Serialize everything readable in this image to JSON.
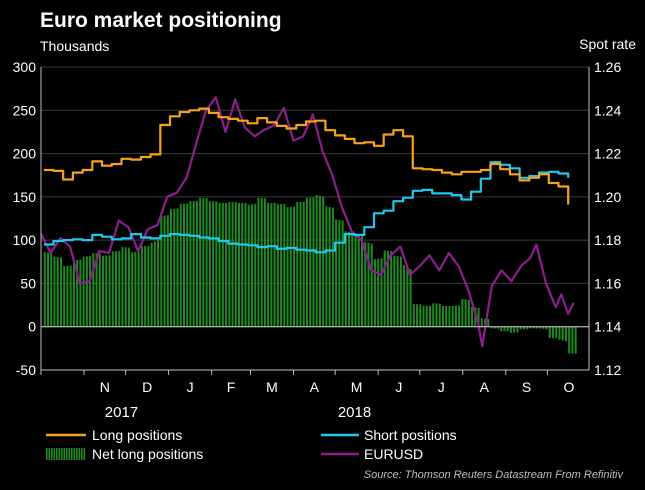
{
  "chart_data": {
    "type": "line",
    "title": "Euro market positioning",
    "left_axis_label": "Thousands",
    "right_axis_label": "Spot rate",
    "left_ylim": [
      -50,
      300
    ],
    "right_ylim": [
      1.12,
      1.26
    ],
    "left_ticks": [
      "300",
      "250",
      "200",
      "150",
      "100",
      "50",
      "0",
      "-50"
    ],
    "right_ticks": [
      "1.26",
      "1.24",
      "1.22",
      "1.20",
      "1.18",
      "1.16",
      "1.14",
      "1.12"
    ],
    "months": [
      "N",
      "D",
      "J",
      "F",
      "M",
      "A",
      "M",
      "J",
      "J",
      "A",
      "S",
      "O"
    ],
    "years": [
      "2017",
      "2018"
    ],
    "x_start": "2017-10-01",
    "x_end": "2018-10-31",
    "source": "Source: Thomson Reuters Datastream From Refinitiv",
    "series": [
      {
        "name": "Long positions",
        "axis": "left",
        "color": "#f7a21b",
        "kind": "line",
        "points": [
          [
            "2017-10-03",
            181
          ],
          [
            "2017-10-10",
            180
          ],
          [
            "2017-10-17",
            170
          ],
          [
            "2017-10-24",
            178
          ],
          [
            "2017-10-31",
            181
          ],
          [
            "2017-11-07",
            191
          ],
          [
            "2017-11-14",
            186
          ],
          [
            "2017-11-21",
            188
          ],
          [
            "2017-11-28",
            194
          ],
          [
            "2017-12-05",
            193
          ],
          [
            "2017-12-12",
            196
          ],
          [
            "2017-12-19",
            199
          ],
          [
            "2017-12-26",
            233
          ],
          [
            "2018-01-02",
            243
          ],
          [
            "2018-01-09",
            248
          ],
          [
            "2018-01-16",
            250
          ],
          [
            "2018-01-23",
            252
          ],
          [
            "2018-01-30",
            247
          ],
          [
            "2018-02-06",
            242
          ],
          [
            "2018-02-13",
            240
          ],
          [
            "2018-02-20",
            238
          ],
          [
            "2018-02-27",
            235
          ],
          [
            "2018-03-06",
            241
          ],
          [
            "2018-03-13",
            236
          ],
          [
            "2018-03-20",
            232
          ],
          [
            "2018-03-27",
            229
          ],
          [
            "2018-04-03",
            233
          ],
          [
            "2018-04-10",
            237
          ],
          [
            "2018-04-17",
            238
          ],
          [
            "2018-04-24",
            227
          ],
          [
            "2018-05-01",
            221
          ],
          [
            "2018-05-08",
            217
          ],
          [
            "2018-05-15",
            212
          ],
          [
            "2018-05-22",
            213
          ],
          [
            "2018-05-29",
            209
          ],
          [
            "2018-06-05",
            222
          ],
          [
            "2018-06-12",
            227
          ],
          [
            "2018-06-19",
            220
          ],
          [
            "2018-06-26",
            183
          ],
          [
            "2018-07-03",
            182
          ],
          [
            "2018-07-10",
            181
          ],
          [
            "2018-07-17",
            178
          ],
          [
            "2018-07-24",
            176
          ],
          [
            "2018-07-31",
            179
          ],
          [
            "2018-08-07",
            179
          ],
          [
            "2018-08-14",
            181
          ],
          [
            "2018-08-21",
            188
          ],
          [
            "2018-08-28",
            182
          ],
          [
            "2018-09-04",
            176
          ],
          [
            "2018-09-11",
            169
          ],
          [
            "2018-09-18",
            172
          ],
          [
            "2018-09-25",
            176
          ],
          [
            "2018-10-02",
            166
          ],
          [
            "2018-10-09",
            162
          ],
          [
            "2018-10-16",
            141
          ]
        ]
      },
      {
        "name": "Short positions",
        "axis": "left",
        "color": "#1ec8f0",
        "kind": "line",
        "points": [
          [
            "2017-10-03",
            95
          ],
          [
            "2017-10-10",
            99
          ],
          [
            "2017-10-17",
            100
          ],
          [
            "2017-10-24",
            101
          ],
          [
            "2017-10-31",
            100
          ],
          [
            "2017-11-07",
            106
          ],
          [
            "2017-11-14",
            104
          ],
          [
            "2017-11-21",
            101
          ],
          [
            "2017-11-28",
            102
          ],
          [
            "2017-12-05",
            107
          ],
          [
            "2017-12-12",
            103
          ],
          [
            "2017-12-19",
            102
          ],
          [
            "2017-12-26",
            105
          ],
          [
            "2018-01-02",
            107
          ],
          [
            "2018-01-09",
            106
          ],
          [
            "2018-01-16",
            105
          ],
          [
            "2018-01-23",
            103
          ],
          [
            "2018-01-30",
            102
          ],
          [
            "2018-02-06",
            99
          ],
          [
            "2018-02-13",
            96
          ],
          [
            "2018-02-20",
            95
          ],
          [
            "2018-02-27",
            94
          ],
          [
            "2018-03-06",
            92
          ],
          [
            "2018-03-13",
            93
          ],
          [
            "2018-03-20",
            90
          ],
          [
            "2018-03-27",
            91
          ],
          [
            "2018-04-03",
            89
          ],
          [
            "2018-04-10",
            88
          ],
          [
            "2018-04-17",
            86
          ],
          [
            "2018-04-24",
            88
          ],
          [
            "2018-05-01",
            97
          ],
          [
            "2018-05-08",
            107
          ],
          [
            "2018-05-15",
            106
          ],
          [
            "2018-05-22",
            115
          ],
          [
            "2018-05-29",
            131
          ],
          [
            "2018-06-05",
            134
          ],
          [
            "2018-06-12",
            145
          ],
          [
            "2018-06-19",
            149
          ],
          [
            "2018-06-26",
            157
          ],
          [
            "2018-07-03",
            158
          ],
          [
            "2018-07-10",
            154
          ],
          [
            "2018-07-17",
            154
          ],
          [
            "2018-07-24",
            152
          ],
          [
            "2018-07-31",
            147
          ],
          [
            "2018-08-07",
            156
          ],
          [
            "2018-08-14",
            171
          ],
          [
            "2018-08-21",
            190
          ],
          [
            "2018-08-28",
            187
          ],
          [
            "2018-09-04",
            183
          ],
          [
            "2018-09-11",
            172
          ],
          [
            "2018-09-18",
            174
          ],
          [
            "2018-09-25",
            178
          ],
          [
            "2018-10-02",
            179
          ],
          [
            "2018-10-09",
            177
          ],
          [
            "2018-10-16",
            172
          ]
        ]
      },
      {
        "name": "Net long positions",
        "axis": "left",
        "color": "#1f8a1f",
        "kind": "bar",
        "points": [
          [
            "2017-10-03",
            86
          ],
          [
            "2017-10-10",
            81
          ],
          [
            "2017-10-17",
            70
          ],
          [
            "2017-10-24",
            77
          ],
          [
            "2017-10-31",
            81
          ],
          [
            "2017-11-07",
            85
          ],
          [
            "2017-11-14",
            82
          ],
          [
            "2017-11-21",
            87
          ],
          [
            "2017-11-28",
            92
          ],
          [
            "2017-12-05",
            86
          ],
          [
            "2017-12-12",
            93
          ],
          [
            "2017-12-19",
            97
          ],
          [
            "2017-12-26",
            128
          ],
          [
            "2018-01-02",
            136
          ],
          [
            "2018-01-09",
            142
          ],
          [
            "2018-01-16",
            145
          ],
          [
            "2018-01-23",
            149
          ],
          [
            "2018-01-30",
            145
          ],
          [
            "2018-02-06",
            143
          ],
          [
            "2018-02-13",
            144
          ],
          [
            "2018-02-20",
            143
          ],
          [
            "2018-02-27",
            141
          ],
          [
            "2018-03-06",
            149
          ],
          [
            "2018-03-13",
            143
          ],
          [
            "2018-03-20",
            142
          ],
          [
            "2018-03-27",
            138
          ],
          [
            "2018-04-03",
            144
          ],
          [
            "2018-04-10",
            149
          ],
          [
            "2018-04-17",
            152
          ],
          [
            "2018-04-24",
            139
          ],
          [
            "2018-05-01",
            124
          ],
          [
            "2018-05-08",
            110
          ],
          [
            "2018-05-15",
            106
          ],
          [
            "2018-05-22",
            98
          ],
          [
            "2018-05-29",
            78
          ],
          [
            "2018-06-05",
            88
          ],
          [
            "2018-06-12",
            82
          ],
          [
            "2018-06-19",
            71
          ],
          [
            "2018-06-26",
            26
          ],
          [
            "2018-07-03",
            24
          ],
          [
            "2018-07-10",
            27
          ],
          [
            "2018-07-17",
            24
          ],
          [
            "2018-07-24",
            24
          ],
          [
            "2018-07-31",
            32
          ],
          [
            "2018-08-07",
            23
          ],
          [
            "2018-08-14",
            10
          ],
          [
            "2018-08-21",
            -2
          ],
          [
            "2018-08-28",
            -5
          ],
          [
            "2018-09-04",
            -7
          ],
          [
            "2018-09-11",
            -3
          ],
          [
            "2018-09-18",
            -2
          ],
          [
            "2018-09-25",
            -2
          ],
          [
            "2018-10-02",
            -13
          ],
          [
            "2018-10-09",
            -15
          ],
          [
            "2018-10-16",
            -31
          ]
        ]
      },
      {
        "name": "EURUSD",
        "axis": "right",
        "color": "#8e1e8e",
        "kind": "line",
        "points": [
          [
            "2017-10-01",
            1.183
          ],
          [
            "2017-10-08",
            1.174
          ],
          [
            "2017-10-15",
            1.181
          ],
          [
            "2017-10-22",
            1.177
          ],
          [
            "2017-10-29",
            1.16
          ],
          [
            "2017-11-05",
            1.161
          ],
          [
            "2017-11-12",
            1.175
          ],
          [
            "2017-11-19",
            1.174
          ],
          [
            "2017-11-26",
            1.189
          ],
          [
            "2017-12-03",
            1.186
          ],
          [
            "2017-12-10",
            1.175
          ],
          [
            "2017-12-17",
            1.185
          ],
          [
            "2017-12-24",
            1.187
          ],
          [
            "2017-12-31",
            1.2
          ],
          [
            "2018-01-07",
            1.202
          ],
          [
            "2018-01-14",
            1.209
          ],
          [
            "2018-01-21",
            1.225
          ],
          [
            "2018-01-28",
            1.24
          ],
          [
            "2018-02-04",
            1.246
          ],
          [
            "2018-02-11",
            1.23
          ],
          [
            "2018-02-18",
            1.245
          ],
          [
            "2018-02-25",
            1.232
          ],
          [
            "2018-03-04",
            1.228
          ],
          [
            "2018-03-11",
            1.231
          ],
          [
            "2018-03-18",
            1.233
          ],
          [
            "2018-03-25",
            1.241
          ],
          [
            "2018-04-01",
            1.226
          ],
          [
            "2018-04-08",
            1.228
          ],
          [
            "2018-04-15",
            1.238
          ],
          [
            "2018-04-22",
            1.221
          ],
          [
            "2018-04-29",
            1.21
          ],
          [
            "2018-05-06",
            1.195
          ],
          [
            "2018-05-13",
            1.184
          ],
          [
            "2018-05-20",
            1.18
          ],
          [
            "2018-05-27",
            1.166
          ],
          [
            "2018-06-03",
            1.164
          ],
          [
            "2018-06-10",
            1.173
          ],
          [
            "2018-06-17",
            1.177
          ],
          [
            "2018-06-24",
            1.164
          ],
          [
            "2018-07-01",
            1.168
          ],
          [
            "2018-07-08",
            1.173
          ],
          [
            "2018-07-15",
            1.166
          ],
          [
            "2018-07-22",
            1.174
          ],
          [
            "2018-07-29",
            1.168
          ],
          [
            "2018-08-05",
            1.157
          ],
          [
            "2018-08-12",
            1.142
          ],
          [
            "2018-08-15",
            1.131
          ],
          [
            "2018-08-22",
            1.159
          ],
          [
            "2018-08-29",
            1.166
          ],
          [
            "2018-09-05",
            1.161
          ],
          [
            "2018-09-12",
            1.168
          ],
          [
            "2018-09-19",
            1.172
          ],
          [
            "2018-09-23",
            1.178
          ],
          [
            "2018-09-30",
            1.16
          ],
          [
            "2018-10-07",
            1.149
          ],
          [
            "2018-10-11",
            1.155
          ],
          [
            "2018-10-16",
            1.146
          ],
          [
            "2018-10-20",
            1.151
          ]
        ]
      }
    ]
  }
}
